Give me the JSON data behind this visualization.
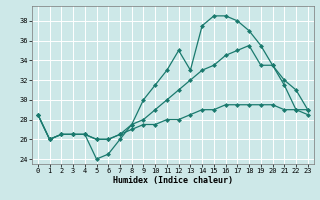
{
  "xlabel": "Humidex (Indice chaleur)",
  "ylabel": "",
  "bg_color": "#cde8e8",
  "grid_color": "#ffffff",
  "line_color": "#1a7a6e",
  "marker": "D",
  "markersize": 2.0,
  "linewidth": 0.9,
  "xlim": [
    -0.5,
    23.5
  ],
  "ylim": [
    23.5,
    39.5
  ],
  "yticks": [
    24,
    26,
    28,
    30,
    32,
    34,
    36,
    38
  ],
  "xticks": [
    0,
    1,
    2,
    3,
    4,
    5,
    6,
    7,
    8,
    9,
    10,
    11,
    12,
    13,
    14,
    15,
    16,
    17,
    18,
    19,
    20,
    21,
    22,
    23
  ],
  "line1_y": [
    28.5,
    26.0,
    26.5,
    26.5,
    26.5,
    24.0,
    24.5,
    26.0,
    27.5,
    30.0,
    31.5,
    33.0,
    35.0,
    33.0,
    37.5,
    38.5,
    38.5,
    38.0,
    37.0,
    35.5,
    33.5,
    31.5,
    29.0,
    28.5
  ],
  "line2_y": [
    28.5,
    26.0,
    26.5,
    26.5,
    26.5,
    26.0,
    26.0,
    26.5,
    27.5,
    28.0,
    29.0,
    30.0,
    31.0,
    32.0,
    33.0,
    33.5,
    34.5,
    35.0,
    35.5,
    33.5,
    33.5,
    32.0,
    31.0,
    29.0
  ],
  "line3_y": [
    28.5,
    26.0,
    26.5,
    26.5,
    26.5,
    26.0,
    26.0,
    26.5,
    27.0,
    27.5,
    27.5,
    28.0,
    28.0,
    28.5,
    29.0,
    29.0,
    29.5,
    29.5,
    29.5,
    29.5,
    29.5,
    29.0,
    29.0,
    29.0
  ]
}
